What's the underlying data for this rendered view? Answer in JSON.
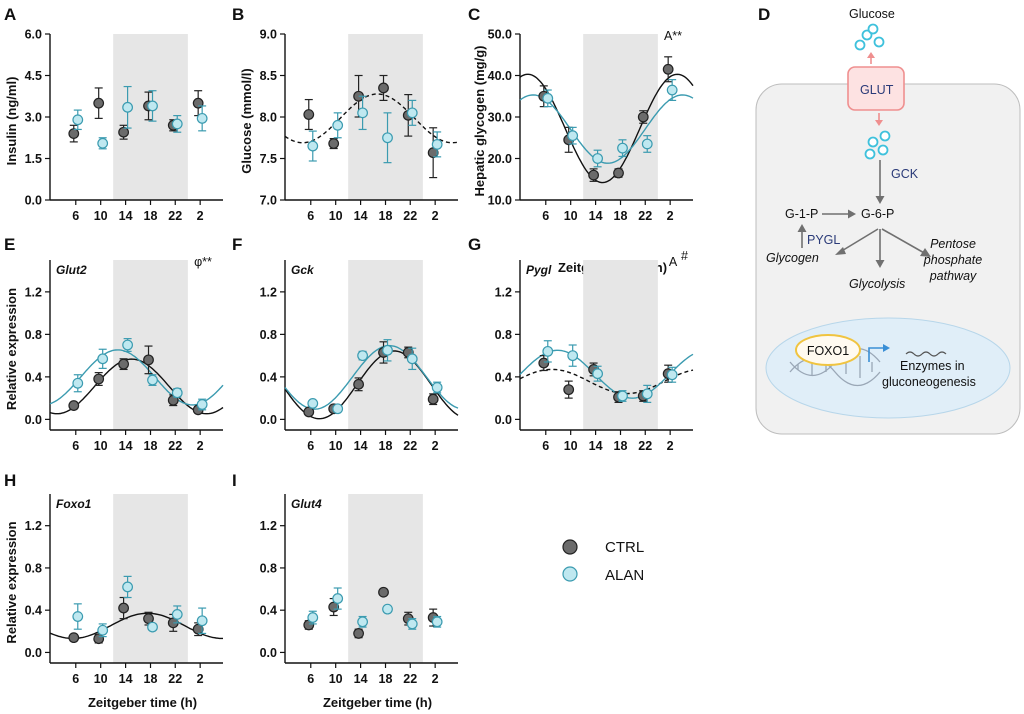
{
  "colors": {
    "ctrl": "#6b6b6b",
    "alan": "#bfe8f0",
    "alan_stroke": "#3b9bb0",
    "shade": "#e6e6e6",
    "glucose": "#3ec1dc"
  },
  "shared_x": {
    "categories": [
      "6",
      "10",
      "14",
      "18",
      "22",
      "2"
    ],
    "dark_phase": [
      "14",
      "2"
    ],
    "xlabel": "Zeitgeber time (h)"
  },
  "chart_data": [
    {
      "id": "A",
      "type": "scatter",
      "title": "",
      "ylabel": "Insulin (ng/ml)",
      "ylim": [
        0,
        6
      ],
      "yticks": [
        "0.0",
        "1.5",
        "3.0",
        "4.5",
        "6.0"
      ],
      "annotation": "",
      "series": [
        {
          "name": "CTRL",
          "values": [
            2.4,
            3.5,
            2.45,
            3.4,
            2.7,
            3.5
          ],
          "err": [
            0.3,
            0.55,
            0.25,
            0.5,
            0.2,
            0.45
          ]
        },
        {
          "name": "ALAN",
          "values": [
            2.9,
            2.05,
            3.35,
            3.4,
            2.75,
            2.95
          ],
          "err": [
            0.35,
            0.2,
            0.75,
            0.55,
            0.3,
            0.45
          ]
        }
      ]
    },
    {
      "id": "B",
      "type": "scatter",
      "title": "",
      "ylabel": "Glucose (mmol/l)",
      "ylim": [
        7,
        9
      ],
      "yticks": [
        "7.0",
        "7.5",
        "8.0",
        "8.5",
        "9.0"
      ],
      "annotation": "",
      "series": [
        {
          "name": "CTRL",
          "values": [
            8.03,
            7.68,
            8.25,
            8.35,
            8.02,
            7.57
          ],
          "err": [
            0.18,
            0.06,
            0.25,
            0.15,
            0.25,
            0.3
          ],
          "fit": "dashed"
        },
        {
          "name": "ALAN",
          "values": [
            7.65,
            7.9,
            8.05,
            7.75,
            8.05,
            7.67
          ],
          "err": [
            0.18,
            0.15,
            0.2,
            0.3,
            0.15,
            0.15
          ]
        }
      ]
    },
    {
      "id": "C",
      "type": "scatter",
      "title": "",
      "ylabel": "Hepatic glycogen (mg/g)",
      "ylim": [
        10,
        50
      ],
      "yticks": [
        "10.0",
        "20.0",
        "30.0",
        "40.0",
        "50.0"
      ],
      "annotation": "A**",
      "series": [
        {
          "name": "CTRL",
          "values": [
            35,
            24.5,
            16,
            16.5,
            30,
            41.5
          ],
          "err": [
            2.5,
            3,
            1.5,
            1,
            1.5,
            3
          ],
          "fit": "solid"
        },
        {
          "name": "ALAN",
          "values": [
            34.5,
            25.5,
            20,
            22.5,
            23.5,
            36.5
          ],
          "err": [
            2,
            2,
            2,
            2,
            2,
            2.5
          ],
          "fit": "solid"
        }
      ]
    },
    {
      "id": "E",
      "type": "scatter",
      "title": "Glut2",
      "ylabel": "Relative expression",
      "ylim": [
        -0.1,
        1.5
      ],
      "yticks": [
        "0.0",
        "0.4",
        "0.8",
        "1.2"
      ],
      "annotation": "φ**",
      "series": [
        {
          "name": "CTRL",
          "values": [
            0.13,
            0.38,
            0.52,
            0.56,
            0.18,
            0.09
          ],
          "err": [
            0.03,
            0.06,
            0.05,
            0.13,
            0.05,
            0.03
          ],
          "fit": "solid"
        },
        {
          "name": "ALAN",
          "values": [
            0.34,
            0.57,
            0.7,
            0.37,
            0.25,
            0.14
          ],
          "err": [
            0.08,
            0.09,
            0.06,
            0.05,
            0.04,
            0.05
          ],
          "fit": "solid"
        }
      ]
    },
    {
      "id": "F",
      "type": "scatter",
      "title": "Gck",
      "ylabel": "",
      "ylim": [
        -0.1,
        1.5
      ],
      "yticks": [
        "0.0",
        "0.4",
        "0.8",
        "1.2"
      ],
      "annotation": "",
      "series": [
        {
          "name": "CTRL",
          "values": [
            0.07,
            0.1,
            0.33,
            0.63,
            0.63,
            0.19
          ],
          "err": [
            0.02,
            0.03,
            0.06,
            0.1,
            0.05,
            0.05
          ],
          "fit": "solid"
        },
        {
          "name": "ALAN",
          "values": [
            0.15,
            0.1,
            0.6,
            0.65,
            0.57,
            0.3
          ],
          "err": [
            0.02,
            0.02,
            0.04,
            0.1,
            0.1,
            0.05
          ],
          "fit": "solid"
        }
      ]
    },
    {
      "id": "G",
      "type": "scatter",
      "title": "Pygl",
      "ylabel": "",
      "ylim": [
        -0.1,
        1.5
      ],
      "yticks": [
        "0.0",
        "0.4",
        "0.8",
        "1.2"
      ],
      "annotation": "A#",
      "series": [
        {
          "name": "CTRL",
          "values": [
            0.53,
            0.28,
            0.47,
            0.21,
            0.22,
            0.43
          ],
          "err": [
            0.07,
            0.08,
            0.06,
            0.05,
            0.05,
            0.08
          ],
          "fit": "dashed"
        },
        {
          "name": "ALAN",
          "values": [
            0.64,
            0.6,
            0.43,
            0.22,
            0.24,
            0.42
          ],
          "err": [
            0.1,
            0.1,
            0.07,
            0.05,
            0.08,
            0.07
          ],
          "fit": "solid"
        }
      ]
    },
    {
      "id": "H",
      "type": "scatter",
      "title": "Foxo1",
      "ylabel": "Relative expression",
      "ylim": [
        -0.1,
        1.5
      ],
      "yticks": [
        "0.0",
        "0.4",
        "0.8",
        "1.2"
      ],
      "annotation": "",
      "series": [
        {
          "name": "CTRL",
          "values": [
            0.14,
            0.13,
            0.42,
            0.32,
            0.28,
            0.22
          ],
          "err": [
            0.03,
            0.04,
            0.1,
            0.06,
            0.08,
            0.06
          ],
          "fit": "solid"
        },
        {
          "name": "ALAN",
          "values": [
            0.34,
            0.21,
            0.62,
            0.24,
            0.36,
            0.3
          ],
          "err": [
            0.12,
            0.06,
            0.1,
            0.03,
            0.08,
            0.12
          ]
        }
      ]
    },
    {
      "id": "I",
      "type": "scatter",
      "title": "Glut4",
      "ylabel": "",
      "ylim": [
        -0.1,
        1.5
      ],
      "yticks": [
        "0.0",
        "0.4",
        "0.8",
        "1.2"
      ],
      "annotation": "",
      "series": [
        {
          "name": "CTRL",
          "values": [
            0.26,
            0.43,
            0.18,
            0.57,
            0.32,
            0.33
          ],
          "err": [
            0.04,
            0.08,
            0.04,
            0.03,
            0.06,
            0.08
          ]
        },
        {
          "name": "ALAN",
          "values": [
            0.33,
            0.51,
            0.29,
            0.41,
            0.27,
            0.29
          ],
          "err": [
            0.06,
            0.1,
            0.05,
            0.03,
            0.05,
            0.05
          ]
        }
      ]
    }
  ],
  "legend": {
    "ctrl": "CTRL",
    "alan": "ALAN"
  },
  "diagram": {
    "label": "D",
    "glucose": "Glucose",
    "glut": "GLUT",
    "gck": "GCK",
    "g1p": "G-1-P",
    "g6p": "G-6-P",
    "pygl": "PYGL",
    "glycogen": "Glycogen",
    "glycolysis": "Glycolysis",
    "pentose1": "Pentose",
    "pentose2": "phosphate",
    "pentose3": "pathway",
    "foxo1": "FOXO1",
    "enzymes1": "Enzymes in",
    "enzymes2": "gluconeogenesis"
  }
}
